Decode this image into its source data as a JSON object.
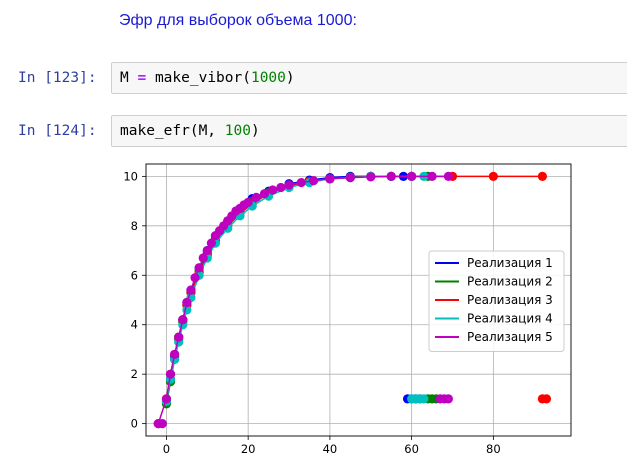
{
  "markdown": {
    "text": "Эфр для выборок объема 1000:"
  },
  "cells": [
    {
      "prompt": "In [123]:",
      "code": {
        "var": "M",
        "op": "=",
        "func": "make_vibor(",
        "arg": "1000",
        "close": ")"
      }
    },
    {
      "prompt": "In [124]:",
      "code": {
        "func": "make_efr(M, ",
        "arg": "100",
        "close": ")"
      }
    }
  ],
  "colors": {
    "blue": "#0000ff",
    "green": "#008000",
    "red": "#ff0000",
    "cyan": "#00bfbf",
    "magenta": "#bf00bf"
  },
  "chart_data": {
    "type": "line",
    "title": "",
    "xlabel": "",
    "ylabel": "",
    "xlim": [
      -5,
      99
    ],
    "ylim": [
      -0.5,
      10.5
    ],
    "xticks": [
      0,
      20,
      40,
      60,
      80
    ],
    "yticks": [
      0,
      2,
      4,
      6,
      8,
      10
    ],
    "grid": true,
    "legend_position": "center-right",
    "series": [
      {
        "name": "Реализация 1",
        "color": "#0000ff",
        "x": [
          0,
          1,
          2,
          3,
          4,
          5,
          6,
          8,
          10,
          12,
          15,
          18,
          21,
          25,
          30,
          35,
          40,
          45,
          50,
          55,
          58
        ],
        "y": [
          0.9,
          1.8,
          2.7,
          3.5,
          4.2,
          4.9,
          5.4,
          6.3,
          7.0,
          7.6,
          8.2,
          8.7,
          9.1,
          9.4,
          9.7,
          9.85,
          9.95,
          10,
          10,
          10,
          10
        ],
        "outliers_x": [
          59,
          60,
          61,
          62
        ],
        "outliers_y": [
          1,
          1,
          1,
          1
        ]
      },
      {
        "name": "Реализация 2",
        "color": "#008000",
        "x": [
          0,
          1,
          2,
          3,
          4,
          5,
          6,
          8,
          10,
          12,
          15,
          18,
          21,
          25,
          30,
          35,
          40,
          45,
          50,
          55,
          60,
          64
        ],
        "y": [
          0.8,
          1.7,
          2.6,
          3.4,
          4.1,
          4.8,
          5.3,
          6.2,
          6.9,
          7.5,
          8.1,
          8.6,
          9.0,
          9.35,
          9.65,
          9.8,
          9.9,
          9.97,
          10,
          10,
          10,
          10
        ],
        "outliers_x": [
          64,
          65,
          66
        ],
        "outliers_y": [
          1,
          1,
          1
        ]
      },
      {
        "name": "Реализация 3",
        "color": "#ff0000",
        "x": [
          0,
          1,
          2,
          3,
          4,
          5,
          6,
          8,
          10,
          12,
          15,
          18,
          21,
          25,
          30,
          35,
          40,
          50,
          60,
          70,
          80,
          92
        ],
        "y": [
          1.0,
          2.0,
          2.8,
          3.5,
          4.2,
          4.8,
          5.3,
          6.1,
          6.8,
          7.4,
          8.0,
          8.5,
          8.9,
          9.3,
          9.6,
          9.8,
          9.9,
          10,
          10,
          10,
          10,
          10
        ],
        "outliers_x": [
          92,
          93
        ],
        "outliers_y": [
          1,
          1
        ]
      },
      {
        "name": "Реализация 4",
        "color": "#00bfbf",
        "x": [
          0,
          1,
          2,
          3,
          4,
          5,
          6,
          8,
          10,
          12,
          15,
          18,
          21,
          25,
          30,
          35,
          40,
          45,
          50,
          55,
          60,
          63
        ],
        "y": [
          0.9,
          1.8,
          2.6,
          3.3,
          4.0,
          4.6,
          5.1,
          6.0,
          6.7,
          7.3,
          7.9,
          8.4,
          8.8,
          9.2,
          9.55,
          9.75,
          9.9,
          9.95,
          10,
          10,
          10,
          10
        ],
        "outliers_x": [
          60,
          61,
          62,
          63
        ],
        "outliers_y": [
          1,
          1,
          1,
          1
        ]
      },
      {
        "name": "Реализация 5",
        "color": "#bf00bf",
        "x": [
          -2,
          0,
          1,
          2,
          3,
          4,
          5,
          6,
          7,
          8,
          9,
          10,
          11,
          12,
          13,
          14,
          15,
          16,
          17,
          18,
          19,
          20,
          22,
          24,
          26,
          28,
          30,
          33,
          36,
          40,
          45,
          50,
          55,
          60,
          65,
          69
        ],
        "y": [
          0,
          1.0,
          2.0,
          2.8,
          3.5,
          4.2,
          4.9,
          5.4,
          5.9,
          6.3,
          6.7,
          7.0,
          7.3,
          7.6,
          7.8,
          8.0,
          8.2,
          8.4,
          8.6,
          8.7,
          8.85,
          8.95,
          9.15,
          9.3,
          9.45,
          9.55,
          9.65,
          9.75,
          9.83,
          9.9,
          9.95,
          9.98,
          10,
          10,
          10,
          10
        ],
        "outliers_x": [
          -2,
          -1,
          67,
          68,
          69
        ],
        "outliers_y": [
          0,
          0,
          1,
          1,
          1
        ]
      }
    ]
  }
}
